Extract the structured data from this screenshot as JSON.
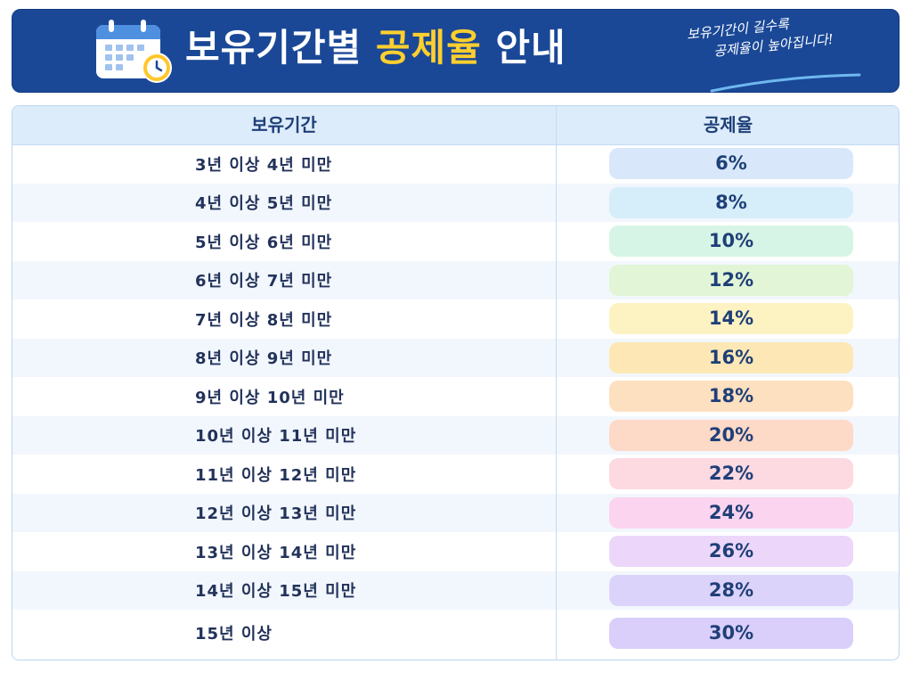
{
  "header": {
    "title_main": "보유기간별",
    "title_highlight": "공제율",
    "title_end": "안내",
    "tagline_line1": "보유기간이 길수록",
    "tagline_line2": "공제율이 높아집니다!",
    "icon": "calendar-clock-icon"
  },
  "table": {
    "col_period": "보유기간",
    "col_rate": "공제율",
    "rows": [
      {
        "period": "3년 이상 4년 미만",
        "rate": "6%",
        "color": "#d8e8fa"
      },
      {
        "period": "4년 이상 5년 미만",
        "rate": "8%",
        "color": "#d5eefa"
      },
      {
        "period": "5년 이상 6년 미만",
        "rate": "10%",
        "color": "#d7f5e6"
      },
      {
        "period": "6년 이상 7년 미만",
        "rate": "12%",
        "color": "#e2f5d6"
      },
      {
        "period": "7년 이상 8년 미만",
        "rate": "14%",
        "color": "#fdf2c2"
      },
      {
        "period": "8년 이상 9년 미만",
        "rate": "16%",
        "color": "#fde7b5"
      },
      {
        "period": "9년 이상 10년 미만",
        "rate": "18%",
        "color": "#fde0c0"
      },
      {
        "period": "10년 이상 11년 미만",
        "rate": "20%",
        "color": "#fdd9c7"
      },
      {
        "period": "11년 이상 12년 미만",
        "rate": "22%",
        "color": "#fdd9e1"
      },
      {
        "period": "12년 이상 13년 미만",
        "rate": "24%",
        "color": "#fbd4ef"
      },
      {
        "period": "13년 이상 14년 미만",
        "rate": "26%",
        "color": "#ecd7fa"
      },
      {
        "period": "14년 이상 15년 미만",
        "rate": "28%",
        "color": "#dcd3fa"
      },
      {
        "period": "15년 이상",
        "rate": "30%",
        "color": "#d9cffa"
      }
    ]
  }
}
